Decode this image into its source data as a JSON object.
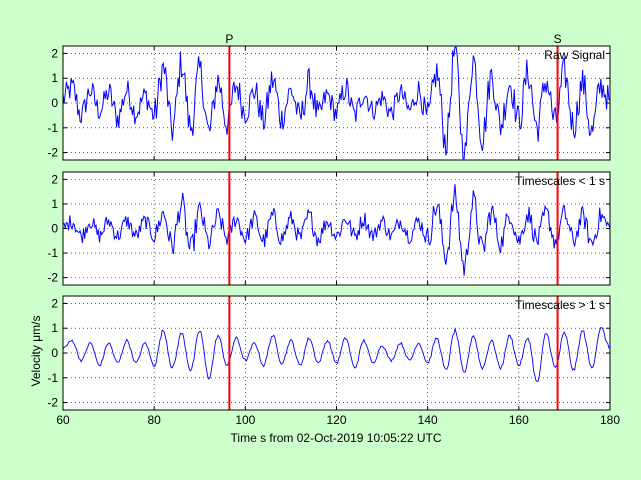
{
  "figure": {
    "xlabel": "Time s from 02-Oct-2019 10:05:22 UTC",
    "ylabel": "Velocity μm/s",
    "background_color": "#ccffcc",
    "trace_color": "#0000ff",
    "marker_color": "#ff0000"
  },
  "chart_data": [
    {
      "type": "line",
      "title": "Raw Signal",
      "xlim": [
        60,
        180
      ],
      "ylim": [
        -2.3,
        2.3
      ],
      "xticks": [
        60,
        80,
        100,
        120,
        140,
        160,
        180
      ],
      "yticks": [
        -2,
        -1,
        0,
        1,
        2
      ],
      "grid": true,
      "phase_markers": [
        {
          "label": "P",
          "x": 96.5
        },
        {
          "label": "S",
          "x": 168.5
        }
      ],
      "series": [
        {
          "x": [
            60,
            62,
            64,
            66,
            68,
            70,
            72,
            74,
            76,
            78,
            80,
            82,
            84,
            86,
            88,
            90,
            92,
            94,
            96,
            98,
            100,
            102,
            104,
            106,
            108,
            110,
            112,
            114,
            116,
            118,
            120,
            122,
            124,
            126,
            128,
            130,
            132,
            134,
            136,
            138,
            140,
            142,
            144,
            146,
            148,
            150,
            152,
            154,
            156,
            158,
            160,
            162,
            164,
            166,
            168,
            170,
            172,
            174,
            176,
            178,
            180
          ],
          "y": [
            0.2,
            0.6,
            -0.5,
            0.5,
            -0.3,
            0.4,
            -0.6,
            0.5,
            -0.4,
            0.3,
            -0.5,
            1.4,
            -1.1,
            1.6,
            -1.0,
            1.3,
            -1.2,
            0.9,
            -0.8,
            0.7,
            -0.4,
            0.5,
            -0.7,
            0.9,
            -0.6,
            0.5,
            -0.6,
            0.8,
            -0.5,
            0.3,
            -0.4,
            0.6,
            -0.5,
            0.4,
            -0.3,
            0.2,
            -0.4,
            0.4,
            -0.3,
            0.5,
            -0.6,
            1.2,
            -1.6,
            2.1,
            -2.2,
            1.8,
            -1.4,
            1.1,
            -0.9,
            0.8,
            -0.7,
            1.2,
            -1.0,
            0.9,
            -0.8,
            1.2,
            -0.9,
            0.8,
            -1.2,
            0.7,
            0.1
          ]
        }
      ]
    },
    {
      "type": "line",
      "title": "Timescales < 1 s",
      "xlim": [
        60,
        180
      ],
      "ylim": [
        -2.3,
        2.3
      ],
      "xticks": [
        60,
        80,
        100,
        120,
        140,
        160,
        180
      ],
      "yticks": [
        -2,
        -1,
        0,
        1,
        2
      ],
      "grid": true,
      "phase_markers": [
        {
          "label": "P",
          "x": 96.5
        },
        {
          "label": "S",
          "x": 168.5
        }
      ],
      "series": [
        {
          "x": [
            60,
            62,
            64,
            66,
            68,
            70,
            72,
            74,
            76,
            78,
            80,
            82,
            84,
            86,
            88,
            90,
            92,
            94,
            96,
            98,
            100,
            102,
            104,
            106,
            108,
            110,
            112,
            114,
            116,
            118,
            120,
            122,
            124,
            126,
            128,
            130,
            132,
            134,
            136,
            138,
            140,
            142,
            144,
            146,
            148,
            150,
            152,
            154,
            156,
            158,
            160,
            162,
            164,
            166,
            168,
            170,
            172,
            174,
            176,
            178,
            180
          ],
          "y": [
            0.0,
            0.3,
            -0.3,
            0.3,
            -0.3,
            0.3,
            -0.3,
            0.3,
            -0.3,
            0.3,
            -0.3,
            0.6,
            -0.7,
            1.0,
            -0.9,
            0.7,
            -0.6,
            0.5,
            -0.4,
            0.4,
            -0.4,
            0.4,
            -0.5,
            0.5,
            -0.4,
            0.4,
            -0.4,
            0.5,
            -0.4,
            0.3,
            -0.3,
            0.4,
            -0.3,
            0.4,
            -0.3,
            0.3,
            -0.3,
            0.3,
            -0.3,
            0.3,
            -0.4,
            0.9,
            -1.1,
            1.3,
            -1.6,
            1.1,
            -0.9,
            0.7,
            -0.6,
            0.6,
            -0.5,
            0.6,
            -0.5,
            0.6,
            -0.5,
            0.6,
            -0.5,
            0.5,
            -0.6,
            0.5,
            0.0
          ]
        }
      ]
    },
    {
      "type": "line",
      "title": "Timescales > 1 s",
      "xlim": [
        60,
        180
      ],
      "ylim": [
        -2.3,
        2.3
      ],
      "xticks": [
        60,
        80,
        100,
        120,
        140,
        160,
        180
      ],
      "yticks": [
        -2,
        -1,
        0,
        1,
        2
      ],
      "grid": true,
      "phase_markers": [
        {
          "label": "P",
          "x": 96.5
        },
        {
          "label": "S",
          "x": 168.5
        }
      ],
      "series": [
        {
          "x": [
            60,
            62,
            64,
            66,
            68,
            70,
            72,
            74,
            76,
            78,
            80,
            82,
            84,
            86,
            88,
            90,
            92,
            94,
            96,
            98,
            100,
            102,
            104,
            106,
            108,
            110,
            112,
            114,
            116,
            118,
            120,
            122,
            124,
            126,
            128,
            130,
            132,
            134,
            136,
            138,
            140,
            142,
            144,
            146,
            148,
            150,
            152,
            154,
            156,
            158,
            160,
            162,
            164,
            166,
            168,
            170,
            172,
            174,
            176,
            178,
            180
          ],
          "y": [
            0.2,
            0.5,
            -0.3,
            0.4,
            -0.5,
            0.4,
            -0.4,
            0.5,
            -0.4,
            0.4,
            -0.5,
            0.9,
            -0.6,
            0.8,
            -0.7,
            0.9,
            -1.0,
            0.7,
            -0.5,
            0.6,
            -0.3,
            0.4,
            -0.5,
            0.7,
            -0.4,
            0.5,
            -0.5,
            0.6,
            -0.4,
            0.5,
            -0.4,
            0.6,
            -0.6,
            0.5,
            -0.4,
            0.3,
            -0.3,
            0.4,
            -0.3,
            0.4,
            -0.4,
            0.6,
            -0.7,
            0.9,
            -0.8,
            0.7,
            -0.6,
            0.5,
            -0.6,
            0.7,
            -0.5,
            0.6,
            -1.2,
            0.8,
            -0.6,
            0.8,
            -0.7,
            0.9,
            -0.6,
            1.0,
            0.2
          ]
        }
      ]
    }
  ]
}
